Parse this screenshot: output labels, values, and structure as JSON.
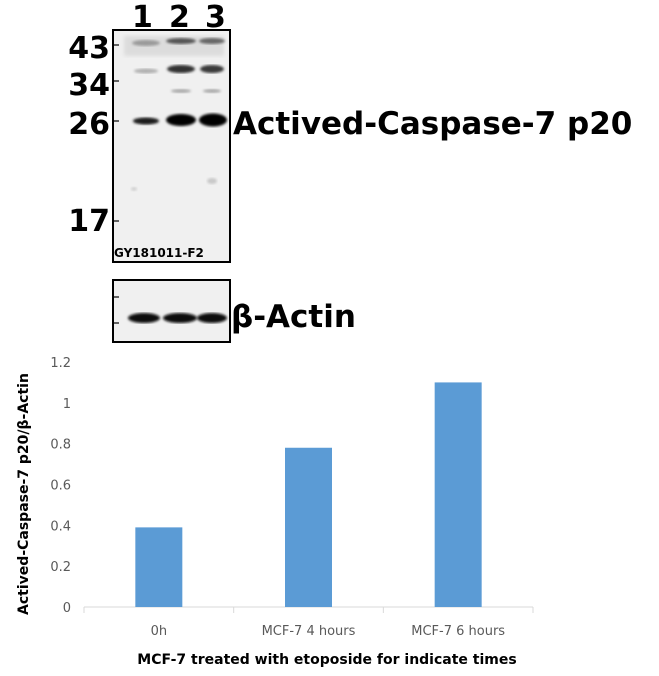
{
  "blot": {
    "lanes": [
      "1",
      "2",
      "3"
    ],
    "markers": [
      "43",
      "34",
      "26",
      "17"
    ],
    "target_label": "Actived-Caspase-7 p20",
    "sample_id": "GY181011-F2",
    "control_label": "β-Actin"
  },
  "chart_data": {
    "type": "bar",
    "categories": [
      "0h",
      "MCF-7 4 hours",
      "MCF-7 6 hours"
    ],
    "values": [
      0.39,
      0.78,
      1.1
    ],
    "ylim": [
      0,
      1.2
    ],
    "yticks": [
      "0",
      "0.2",
      "0.4",
      "0.6",
      "0.8",
      "1",
      "1.2"
    ],
    "xlabel": "MCF-7 treated with etoposide for indicate times",
    "ylabel": "Actived-Caspase-7 p20/β-Actin",
    "grid": false,
    "bar_color": "#5b9bd5"
  }
}
